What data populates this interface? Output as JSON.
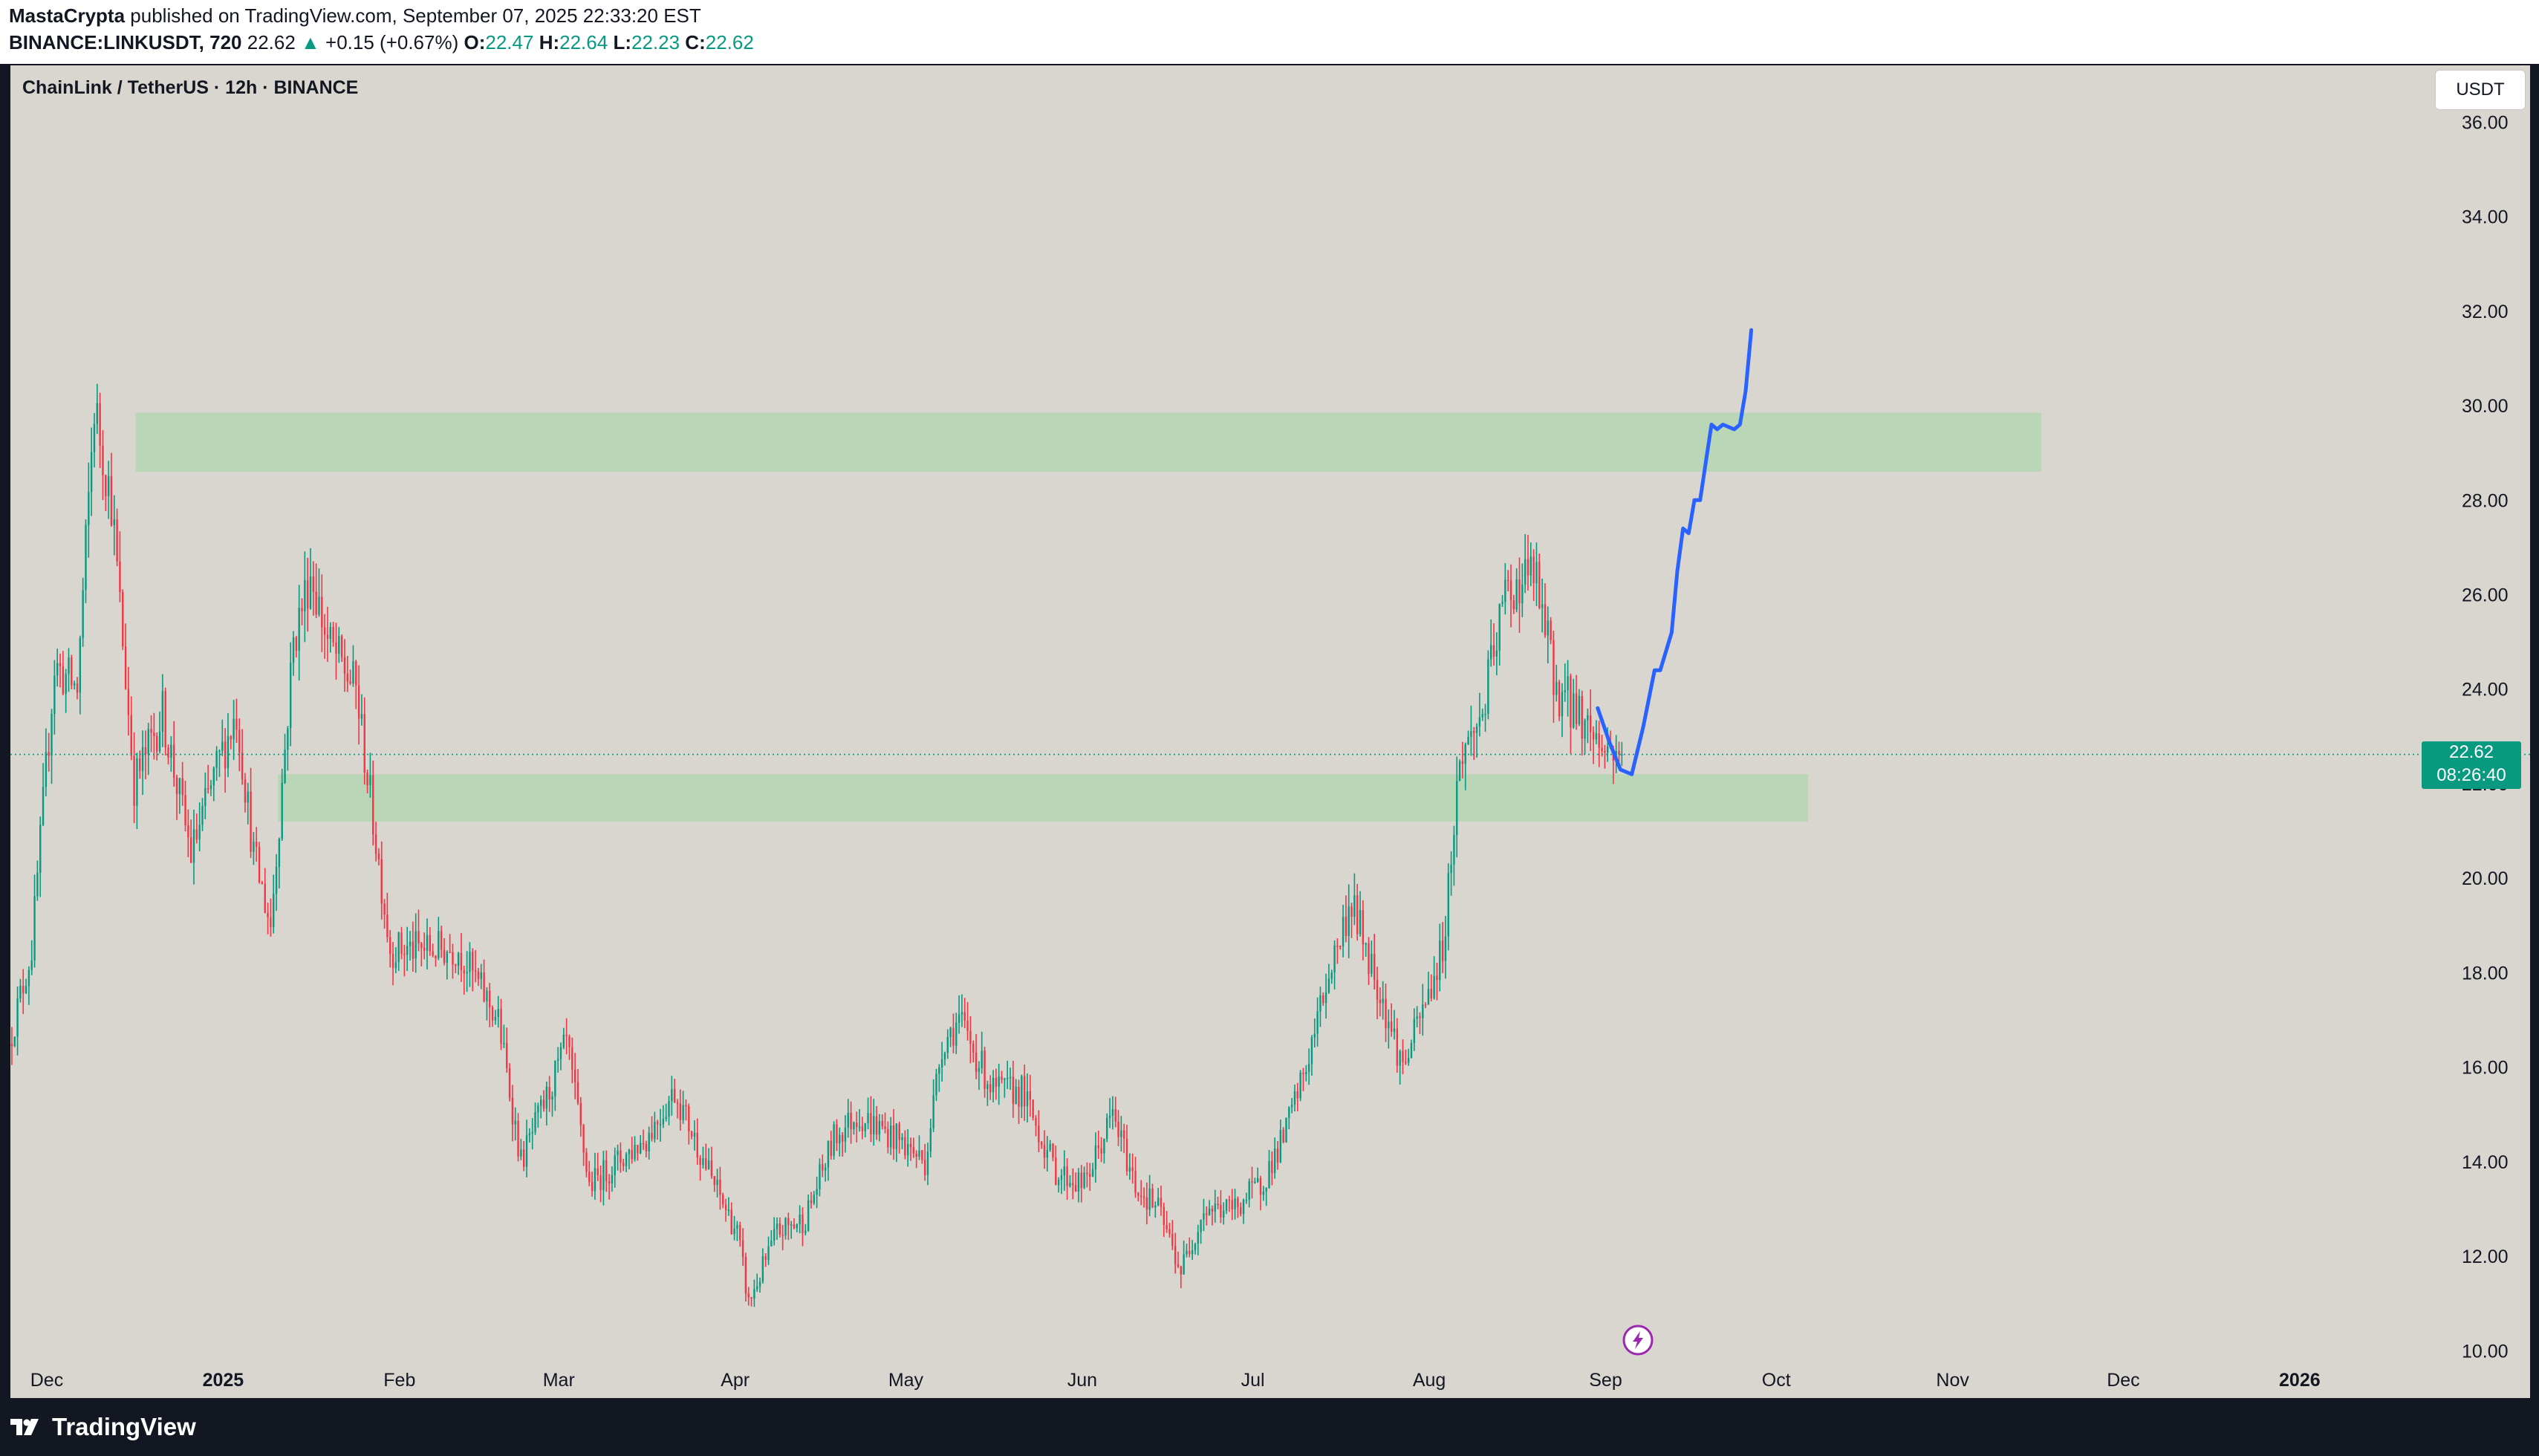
{
  "header": {
    "author": "MastaCrypta",
    "published_text": "published on TradingView.com, September 07, 2025 22:33:20 EST",
    "symbol_line": "BINANCE:LINKUSDT, 720",
    "last": "22.62",
    "change": "+0.15 (+0.67%)",
    "open_label": "O:",
    "open": "22.47",
    "high_label": "H:",
    "high": "22.64",
    "low_label": "L:",
    "low": "22.23",
    "close_label": "C:",
    "close": "22.62"
  },
  "chart_title": "ChainLink / TetherUS · 12h · BINANCE",
  "currency_button": "USDT",
  "price_tag": {
    "price": "22.62",
    "countdown": "08:26:40"
  },
  "footer": {
    "logo_text": "TradingView"
  },
  "colors": {
    "up": "#089981",
    "down": "#f23645",
    "zone": "#a5d6a7",
    "projection": "#2962ff",
    "background": "#d9d6d0"
  },
  "icons": [
    "lightning-icon",
    "tradingview-logo-icon",
    "price-up-arrow-icon"
  ],
  "chart_data": {
    "type": "candlestick",
    "title": "ChainLink / TetherUS · 12h · BINANCE",
    "ylim": [
      9.0,
      37.2
    ],
    "yticks": [
      "36.00",
      "34.00",
      "32.00",
      "30.00",
      "28.00",
      "26.00",
      "24.00",
      "22.00",
      "20.00",
      "18.00",
      "16.00",
      "14.00",
      "12.00",
      "10.00"
    ],
    "x_range": [
      "2024-11-28",
      "2026-01-24"
    ],
    "xticks": [
      {
        "date": "2024-12-01",
        "label": "Dec",
        "bold": false
      },
      {
        "date": "2025-01-01",
        "label": "2025",
        "bold": true
      },
      {
        "date": "2025-02-01",
        "label": "Feb",
        "bold": false
      },
      {
        "date": "2025-03-01",
        "label": "Mar",
        "bold": false
      },
      {
        "date": "2025-04-01",
        "label": "Apr",
        "bold": false
      },
      {
        "date": "2025-05-01",
        "label": "May",
        "bold": false
      },
      {
        "date": "2025-06-01",
        "label": "Jun",
        "bold": false
      },
      {
        "date": "2025-07-01",
        "label": "Jul",
        "bold": false
      },
      {
        "date": "2025-08-01",
        "label": "Aug",
        "bold": false
      },
      {
        "date": "2025-09-01",
        "label": "Sep",
        "bold": false
      },
      {
        "date": "2025-10-01",
        "label": "Oct",
        "bold": false
      },
      {
        "date": "2025-11-01",
        "label": "Nov",
        "bold": false
      },
      {
        "date": "2025-12-01",
        "label": "Dec",
        "bold": false
      },
      {
        "date": "2026-01-01",
        "label": "2026",
        "bold": true
      }
    ],
    "last_price": 22.62,
    "price_path": [
      [
        "2024-11-28",
        16.5
      ],
      [
        "2024-12-02",
        18.5
      ],
      [
        "2024-12-06",
        24.5
      ],
      [
        "2024-12-10",
        24.0
      ],
      [
        "2024-12-13",
        30.0
      ],
      [
        "2024-12-16",
        28.0
      ],
      [
        "2024-12-20",
        22.0
      ],
      [
        "2024-12-25",
        23.5
      ],
      [
        "2024-12-30",
        20.5
      ],
      [
        "2025-01-04",
        22.5
      ],
      [
        "2025-01-07",
        23.5
      ],
      [
        "2025-01-10",
        20.5
      ],
      [
        "2025-01-13",
        19.0
      ],
      [
        "2025-01-17",
        25.0
      ],
      [
        "2025-01-20",
        26.5
      ],
      [
        "2025-01-23",
        25.0
      ],
      [
        "2025-01-28",
        24.0
      ],
      [
        "2025-02-03",
        18.5
      ],
      [
        "2025-02-08",
        18.5
      ],
      [
        "2025-02-15",
        18.5
      ],
      [
        "2025-02-22",
        17.0
      ],
      [
        "2025-02-26",
        14.0
      ],
      [
        "2025-03-03",
        15.5
      ],
      [
        "2025-03-06",
        16.5
      ],
      [
        "2025-03-10",
        13.5
      ],
      [
        "2025-03-15",
        14.0
      ],
      [
        "2025-03-20",
        14.5
      ],
      [
        "2025-03-25",
        15.5
      ],
      [
        "2025-04-01",
        13.5
      ],
      [
        "2025-04-05",
        12.5
      ],
      [
        "2025-04-07",
        11.0
      ],
      [
        "2025-04-12",
        12.5
      ],
      [
        "2025-04-17",
        12.8
      ],
      [
        "2025-04-22",
        14.5
      ],
      [
        "2025-04-26",
        15.0
      ],
      [
        "2025-05-03",
        14.5
      ],
      [
        "2025-05-08",
        14.0
      ],
      [
        "2025-05-11",
        16.5
      ],
      [
        "2025-05-14",
        17.0
      ],
      [
        "2025-05-20",
        15.5
      ],
      [
        "2025-05-25",
        15.5
      ],
      [
        "2025-05-31",
        13.8
      ],
      [
        "2025-06-05",
        13.5
      ],
      [
        "2025-06-10",
        15.0
      ],
      [
        "2025-06-14",
        13.5
      ],
      [
        "2025-06-18",
        13.0
      ],
      [
        "2025-06-22",
        11.7
      ],
      [
        "2025-06-26",
        13.0
      ],
      [
        "2025-07-01",
        13.0
      ],
      [
        "2025-07-06",
        13.5
      ],
      [
        "2025-07-10",
        14.5
      ],
      [
        "2025-07-14",
        16.0
      ],
      [
        "2025-07-18",
        18.0
      ],
      [
        "2025-07-22",
        19.5
      ],
      [
        "2025-07-26",
        18.0
      ],
      [
        "2025-07-31",
        16.0
      ],
      [
        "2025-08-03",
        17.0
      ],
      [
        "2025-08-07",
        18.5
      ],
      [
        "2025-08-10",
        22.5
      ],
      [
        "2025-08-14",
        23.5
      ],
      [
        "2025-08-18",
        26.0
      ],
      [
        "2025-08-23",
        26.5
      ],
      [
        "2025-08-27",
        24.0
      ],
      [
        "2025-08-31",
        23.5
      ],
      [
        "2025-09-04",
        22.8
      ],
      [
        "2025-09-07",
        22.62
      ]
    ],
    "zones": [
      {
        "from": "2024-12-20",
        "to": "2025-11-20",
        "low": 28.6,
        "high": 29.85
      },
      {
        "from": "2025-01-14",
        "to": "2025-10-10",
        "low": 21.2,
        "high": 22.2
      }
    ],
    "projection": [
      [
        "2025-09-03",
        23.6
      ],
      [
        "2025-09-05",
        22.9
      ],
      [
        "2025-09-07",
        22.3
      ],
      [
        "2025-09-09",
        22.2
      ],
      [
        "2025-09-11",
        23.2
      ],
      [
        "2025-09-13",
        24.4
      ],
      [
        "2025-09-14",
        24.4
      ],
      [
        "2025-09-16",
        25.2
      ],
      [
        "2025-09-17",
        26.5
      ],
      [
        "2025-09-18",
        27.4
      ],
      [
        "2025-09-19",
        27.3
      ],
      [
        "2025-09-20",
        28.0
      ],
      [
        "2025-09-21",
        28.0
      ],
      [
        "2025-09-22",
        28.8
      ],
      [
        "2025-09-23",
        29.6
      ],
      [
        "2025-09-24",
        29.5
      ],
      [
        "2025-09-25",
        29.6
      ],
      [
        "2025-09-27",
        29.5
      ],
      [
        "2025-09-28",
        29.6
      ],
      [
        "2025-09-29",
        30.3
      ],
      [
        "2025-09-30",
        31.6
      ]
    ]
  }
}
